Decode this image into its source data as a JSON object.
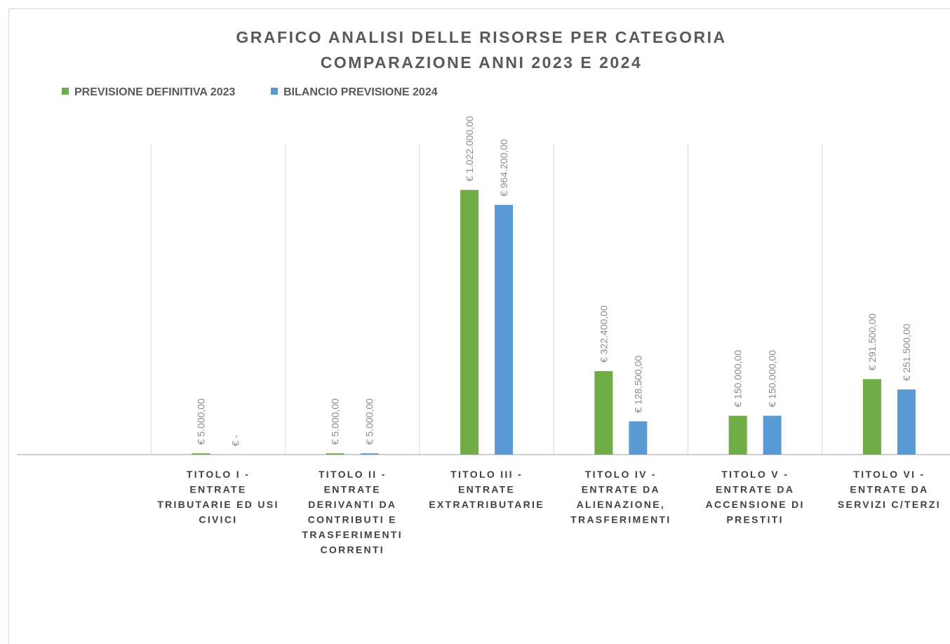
{
  "chart_data": {
    "type": "bar",
    "title": "GRAFICO ANALISI DELLE RISORSE PER CATEGORIA",
    "subtitle": "COMPARAZIONE ANNI 2023 E 2024",
    "categories": [
      null,
      "TITOLO I -\nENTRATE\nTRIBUTARIE ED USI\nCIVICI",
      "TITOLO II -\nENTRATE\nDERIVANTI DA\nCONTRIBUTI E\nTRASFERIMENTI\nCORRENTI",
      "TITOLO III -\nENTRATE\nEXTRATRIBUTARIE",
      "TITOLO IV -\nENTRATE DA\nALIENAZIONE,\nTRASFERIMENTI",
      "TITOLO V -\nENTRATE DA\nACCENSIONE DI\nPRESTITI",
      "TITOLO VI -\nENTRATE DA\nSERVIZI C/TERZI"
    ],
    "series": [
      {
        "name": "PREVISIONE DEFINITIVA 2023",
        "color": "#70ad47",
        "values": [
          null,
          5000,
          5000,
          1022000,
          322400,
          150000,
          291500
        ],
        "value_labels": [
          null,
          "€ 5.000,00",
          "€ 5.000,00",
          "€ 1.022.000,00",
          "€ 322.400,00",
          "€ 150.000,00",
          "€ 291.500,00"
        ]
      },
      {
        "name": "BILANCIO PREVISIONE 2024",
        "color": "#5b9bd5",
        "values": [
          null,
          0,
          5000,
          964200,
          128500,
          150000,
          251500
        ],
        "value_labels": [
          null,
          "€ -",
          "€ 5.000,00",
          "€ 964.200,00",
          "€ 128.500,00",
          "€ 150.000,00",
          "€ 251.500,00"
        ]
      }
    ],
    "ylim": [
      0,
      1200000
    ],
    "legend": "top-left"
  }
}
